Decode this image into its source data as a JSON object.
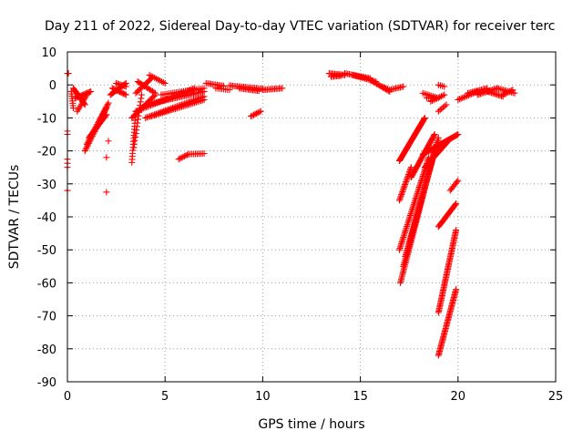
{
  "chart_data": {
    "type": "scatter",
    "title": "Day 211 of 2022, Sidereal Day-to-day VTEC variation (SDTVAR) for receiver terc",
    "xlabel": "GPS time / hours",
    "ylabel": "SDTVAR / TECUs",
    "xlim": [
      0,
      25
    ],
    "ylim": [
      -90,
      10
    ],
    "xticks": [
      0,
      5,
      10,
      15,
      20,
      25
    ],
    "yticks": [
      10,
      0,
      -10,
      -20,
      -30,
      -40,
      -50,
      -60,
      -70,
      -80,
      -90
    ],
    "grid": true,
    "marker": "+",
    "color": "#ff0000",
    "segments": [
      {
        "x0": 0.0,
        "y0": 3.5,
        "x1": 0.05,
        "y1": 3.5,
        "n": 2
      },
      {
        "x0": 0.0,
        "y0": -14.0,
        "x1": 0.0,
        "y1": -15.0,
        "n": 2
      },
      {
        "x0": 0.0,
        "y0": -22.5,
        "x1": 0.0,
        "y1": -25.0,
        "n": 3
      },
      {
        "x0": 0.0,
        "y0": -32.0,
        "x1": 0.0,
        "y1": -32.0,
        "n": 1
      },
      {
        "x0": 0.2,
        "y0": -2.0,
        "x1": 0.3,
        "y1": -7.0,
        "n": 8
      },
      {
        "x0": 0.3,
        "y0": -1.0,
        "x1": 0.9,
        "y1": -6.0,
        "n": 16
      },
      {
        "x0": 0.4,
        "y0": -4.0,
        "x1": 1.2,
        "y1": -2.0,
        "n": 14
      },
      {
        "x0": 0.5,
        "y0": -8.0,
        "x1": 1.0,
        "y1": -3.0,
        "n": 10
      },
      {
        "x0": 0.9,
        "y0": -20.0,
        "x1": 2.0,
        "y1": -7.0,
        "n": 30
      },
      {
        "x0": 1.0,
        "y0": -18.0,
        "x1": 2.1,
        "y1": -5.5,
        "n": 30
      },
      {
        "x0": 1.1,
        "y0": -16.0,
        "x1": 2.0,
        "y1": -9.0,
        "n": 22
      },
      {
        "x0": 2.1,
        "y0": -17.0,
        "x1": 2.1,
        "y1": -17.0,
        "n": 1
      },
      {
        "x0": 2.0,
        "y0": -22.0,
        "x1": 2.0,
        "y1": -22.0,
        "n": 1
      },
      {
        "x0": 2.0,
        "y0": -32.5,
        "x1": 2.0,
        "y1": -32.5,
        "n": 1
      },
      {
        "x0": 2.2,
        "y0": -3.0,
        "x1": 3.0,
        "y1": 0.5,
        "n": 16
      },
      {
        "x0": 2.3,
        "y0": -1.0,
        "x1": 3.0,
        "y1": -3.0,
        "n": 12
      },
      {
        "x0": 2.5,
        "y0": 0.5,
        "x1": 3.0,
        "y1": -0.5,
        "n": 8
      },
      {
        "x0": 3.3,
        "y0": -23.5,
        "x1": 3.5,
        "y1": -8.0,
        "n": 18
      },
      {
        "x0": 3.4,
        "y0": -19.0,
        "x1": 3.8,
        "y1": -3.0,
        "n": 16
      },
      {
        "x0": 3.3,
        "y0": -10.0,
        "x1": 4.5,
        "y1": -3.0,
        "n": 20
      },
      {
        "x0": 3.5,
        "y0": -8.0,
        "x1": 6.5,
        "y1": -1.0,
        "n": 40
      },
      {
        "x0": 3.5,
        "y0": -2.5,
        "x1": 4.3,
        "y1": 2.0,
        "n": 14
      },
      {
        "x0": 3.6,
        "y0": 1.0,
        "x1": 4.5,
        "y1": -2.5,
        "n": 14
      },
      {
        "x0": 4.0,
        "y0": -6.0,
        "x1": 7.0,
        "y1": -2.0,
        "n": 40
      },
      {
        "x0": 4.2,
        "y0": 3.0,
        "x1": 5.0,
        "y1": 0.5,
        "n": 10
      },
      {
        "x0": 4.0,
        "y0": -10.0,
        "x1": 7.0,
        "y1": -3.5,
        "n": 40
      },
      {
        "x0": 4.3,
        "y0": -9.5,
        "x1": 7.0,
        "y1": -4.5,
        "n": 34
      },
      {
        "x0": 4.8,
        "y0": -3.0,
        "x1": 7.0,
        "y1": -1.0,
        "n": 24
      },
      {
        "x0": 5.7,
        "y0": -22.5,
        "x1": 6.2,
        "y1": -21.0,
        "n": 8
      },
      {
        "x0": 6.2,
        "y0": -21.0,
        "x1": 7.0,
        "y1": -20.8,
        "n": 10
      },
      {
        "x0": 7.1,
        "y0": 0.5,
        "x1": 8.0,
        "y1": -0.3,
        "n": 12
      },
      {
        "x0": 7.6,
        "y0": -1.0,
        "x1": 8.3,
        "y1": -1.5,
        "n": 8
      },
      {
        "x0": 8.3,
        "y0": -0.2,
        "x1": 10.0,
        "y1": -1.2,
        "n": 22
      },
      {
        "x0": 8.8,
        "y0": -1.0,
        "x1": 9.8,
        "y1": -1.8,
        "n": 14
      },
      {
        "x0": 9.4,
        "y0": -9.5,
        "x1": 9.9,
        "y1": -8.0,
        "n": 8
      },
      {
        "x0": 10.0,
        "y0": -1.5,
        "x1": 11.0,
        "y1": -1.0,
        "n": 14
      },
      {
        "x0": 13.4,
        "y0": 3.5,
        "x1": 14.2,
        "y1": 3.0,
        "n": 12
      },
      {
        "x0": 13.5,
        "y0": 2.5,
        "x1": 14.0,
        "y1": 2.8,
        "n": 8
      },
      {
        "x0": 14.2,
        "y0": 3.5,
        "x1": 15.5,
        "y1": 2.0,
        "n": 18
      },
      {
        "x0": 14.6,
        "y0": 3.0,
        "x1": 15.8,
        "y1": 1.0,
        "n": 16
      },
      {
        "x0": 15.5,
        "y0": 1.5,
        "x1": 16.5,
        "y1": -2.0,
        "n": 16
      },
      {
        "x0": 16.1,
        "y0": -0.5,
        "x1": 16.4,
        "y1": -1.2,
        "n": 5
      },
      {
        "x0": 16.5,
        "y0": -1.5,
        "x1": 17.2,
        "y1": -0.5,
        "n": 10
      },
      {
        "x0": 17.0,
        "y0": -23.0,
        "x1": 18.3,
        "y1": -10.0,
        "n": 50
      },
      {
        "x0": 17.0,
        "y0": -35.0,
        "x1": 17.6,
        "y1": -25.0,
        "n": 24
      },
      {
        "x0": 17.0,
        "y0": -50.0,
        "x1": 18.5,
        "y1": -22.0,
        "n": 60
      },
      {
        "x0": 17.05,
        "y0": -60.0,
        "x1": 18.8,
        "y1": -20.0,
        "n": 80
      },
      {
        "x0": 17.2,
        "y0": -55.0,
        "x1": 18.9,
        "y1": -18.0,
        "n": 75
      },
      {
        "x0": 17.3,
        "y0": -52.0,
        "x1": 19.0,
        "y1": -16.0,
        "n": 75
      },
      {
        "x0": 17.6,
        "y0": -28.0,
        "x1": 18.8,
        "y1": -15.0,
        "n": 40
      },
      {
        "x0": 18.2,
        "y0": -21.0,
        "x1": 20.0,
        "y1": -15.0,
        "n": 40
      },
      {
        "x0": 18.3,
        "y0": -25.0,
        "x1": 19.5,
        "y1": -17.0,
        "n": 30
      },
      {
        "x0": 18.6,
        "y0": -5.0,
        "x1": 19.3,
        "y1": -3.0,
        "n": 10
      },
      {
        "x0": 18.2,
        "y0": -2.5,
        "x1": 19.0,
        "y1": -4.0,
        "n": 10
      },
      {
        "x0": 18.4,
        "y0": -4.0,
        "x1": 18.9,
        "y1": -4.0,
        "n": 6
      },
      {
        "x0": 19.0,
        "y0": -8.0,
        "x1": 19.4,
        "y1": -6.0,
        "n": 6
      },
      {
        "x0": 19.0,
        "y0": 0.0,
        "x1": 19.3,
        "y1": -0.5,
        "n": 4
      },
      {
        "x0": 19.0,
        "y0": -43.0,
        "x1": 19.9,
        "y1": -36.0,
        "n": 24
      },
      {
        "x0": 19.0,
        "y0": -69.0,
        "x1": 19.9,
        "y1": -44.0,
        "n": 60
      },
      {
        "x0": 19.0,
        "y0": -82.0,
        "x1": 19.9,
        "y1": -62.0,
        "n": 50
      },
      {
        "x0": 19.6,
        "y0": -32.0,
        "x1": 20.0,
        "y1": -29.0,
        "n": 8
      },
      {
        "x0": 20.0,
        "y0": -4.5,
        "x1": 21.0,
        "y1": -2.0,
        "n": 14
      },
      {
        "x0": 20.5,
        "y0": -2.5,
        "x1": 21.5,
        "y1": -1.0,
        "n": 14
      },
      {
        "x0": 21.0,
        "y0": -3.0,
        "x1": 22.0,
        "y1": -1.0,
        "n": 14
      },
      {
        "x0": 21.5,
        "y0": -2.0,
        "x1": 22.3,
        "y1": -3.5,
        "n": 12
      },
      {
        "x0": 22.0,
        "y0": -1.0,
        "x1": 22.9,
        "y1": -2.5,
        "n": 12
      },
      {
        "x0": 22.3,
        "y0": -3.0,
        "x1": 22.8,
        "y1": -1.5,
        "n": 8
      }
    ]
  }
}
